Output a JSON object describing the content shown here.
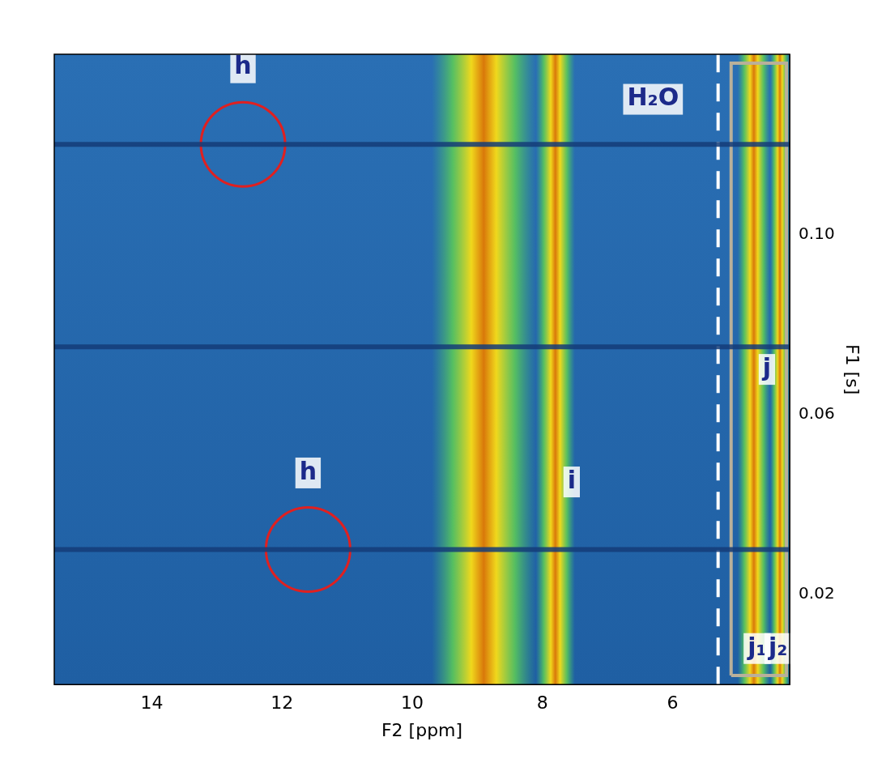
{
  "chart_data": {
    "type": "surface",
    "x_label": "F2 [ppm]",
    "y_label": "F1 [s]",
    "xlim": [
      15.5,
      4.2
    ],
    "xticks": [
      14,
      12,
      10,
      8,
      6
    ],
    "ylim": [
      0,
      0.14
    ],
    "yticks": [
      0.02,
      0.06,
      {
        "value": 0.1,
        "label": "0.10"
      }
    ],
    "grid": false,
    "peaks": [
      {
        "x": 8.9,
        "width": 0.8
      },
      {
        "x": 7.8,
        "width": 0.3
      },
      {
        "x": 4.75,
        "width": 0.25
      },
      {
        "x": 4.35,
        "width": 0.15
      }
    ],
    "ridges": [
      0.03,
      0.075,
      0.12
    ],
    "dashed_line": {
      "x": 5.3,
      "color": "#ffffff",
      "line_style": "dashed"
    },
    "box": {
      "xlim": [
        5.1,
        4.25
      ],
      "ylim": [
        0.002,
        0.138
      ],
      "color": "#b9b09a"
    },
    "circles": {
      "x": [
        12.6,
        11.6
      ],
      "y": [
        0.12,
        0.03
      ],
      "color": "#e02020",
      "marker": "circle"
    },
    "annotations": [
      {
        "text": "h",
        "x": 12.6,
        "y": 0.137
      },
      {
        "text": "h",
        "x": 11.6,
        "y": 0.047
      },
      {
        "text": "i",
        "x": 7.55,
        "y": 0.045
      },
      {
        "text": "H₂O",
        "x": 6.3,
        "y": 0.13
      },
      {
        "text": "j",
        "x": 4.55,
        "y": 0.07
      },
      {
        "text": "j₁",
        "x": 4.7,
        "y": 0.008
      },
      {
        "text": "j₂",
        "x": 4.38,
        "y": 0.008
      }
    ]
  }
}
